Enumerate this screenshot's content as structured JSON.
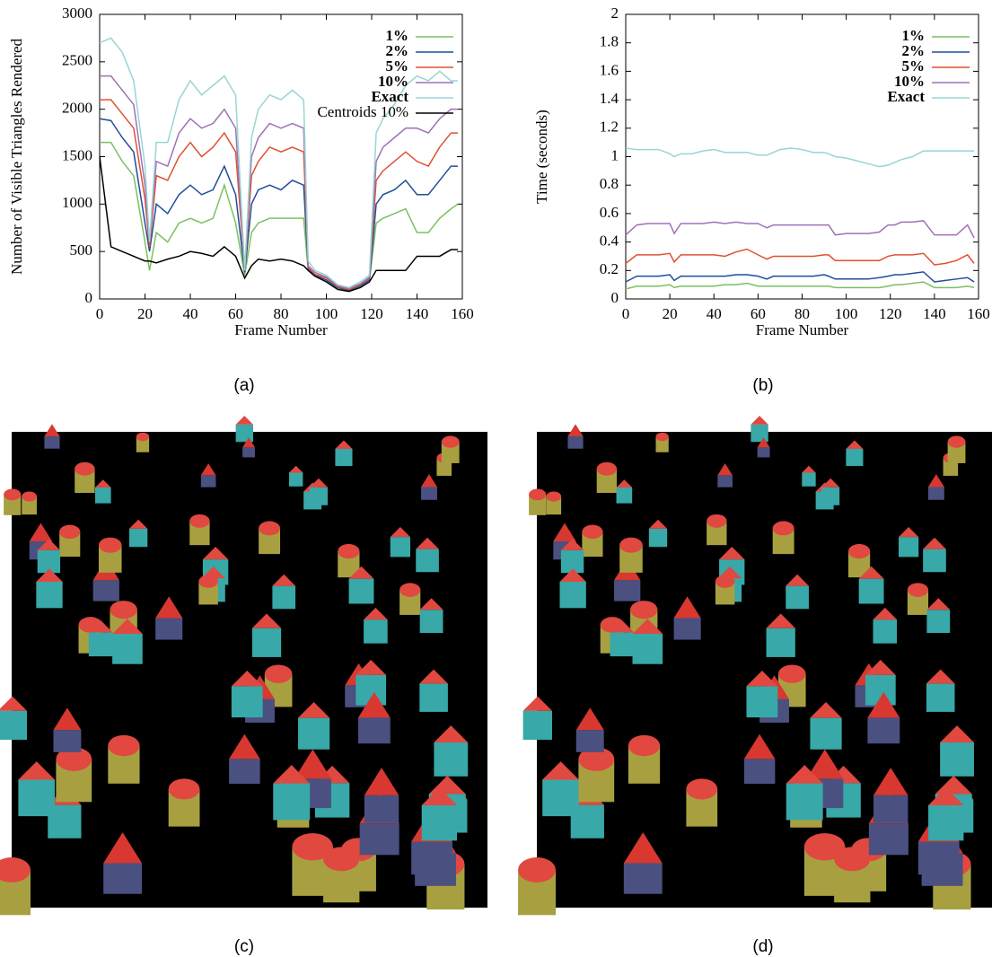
{
  "chart_data": [
    {
      "type": "line",
      "xlabel": "Frame Number",
      "ylabel": "Number of Visible Triangles Rendered",
      "xlim": [
        0,
        160
      ],
      "xticks": [
        0,
        20,
        40,
        60,
        80,
        100,
        120,
        140,
        160
      ],
      "ylim": [
        0,
        3000
      ],
      "yticks": [
        0,
        500,
        1000,
        1500,
        2000,
        2500,
        3000
      ],
      "legend": "top-right",
      "x": [
        0,
        5,
        10,
        15,
        20,
        22,
        25,
        30,
        35,
        40,
        45,
        50,
        55,
        60,
        64,
        67,
        70,
        75,
        80,
        85,
        90,
        92,
        95,
        100,
        105,
        110,
        115,
        119,
        122,
        125,
        130,
        135,
        140,
        145,
        150,
        155,
        158
      ],
      "series": [
        {
          "name": "1%",
          "color": "#7cc060",
          "values": [
            1650,
            1650,
            1450,
            1300,
            600,
            300,
            700,
            600,
            800,
            850,
            800,
            850,
            1200,
            800,
            250,
            700,
            800,
            850,
            850,
            850,
            850,
            300,
            240,
            190,
            110,
            80,
            130,
            190,
            800,
            850,
            900,
            950,
            700,
            700,
            850,
            950,
            1000
          ]
        },
        {
          "name": "2%",
          "color": "#1f4e9a",
          "values": [
            1900,
            1880,
            1700,
            1550,
            800,
            500,
            1000,
            900,
            1100,
            1200,
            1100,
            1150,
            1400,
            1100,
            280,
            1000,
            1150,
            1200,
            1150,
            1250,
            1200,
            320,
            250,
            200,
            120,
            90,
            140,
            200,
            1000,
            1100,
            1150,
            1250,
            1100,
            1100,
            1250,
            1400,
            1400
          ]
        },
        {
          "name": "5%",
          "color": "#e05030",
          "values": [
            2100,
            2100,
            1950,
            1800,
            1050,
            550,
            1300,
            1250,
            1500,
            1650,
            1500,
            1600,
            1750,
            1550,
            300,
            1300,
            1450,
            1600,
            1550,
            1600,
            1550,
            330,
            260,
            220,
            130,
            100,
            150,
            220,
            1250,
            1350,
            1450,
            1550,
            1450,
            1400,
            1600,
            1750,
            1750
          ]
        },
        {
          "name": "10%",
          "color": "#a070b8",
          "values": [
            2350,
            2350,
            2200,
            2050,
            1200,
            600,
            1450,
            1400,
            1750,
            1900,
            1800,
            1850,
            2000,
            1800,
            300,
            1500,
            1700,
            1850,
            1800,
            1850,
            1800,
            350,
            280,
            230,
            140,
            110,
            160,
            230,
            1450,
            1600,
            1700,
            1800,
            1800,
            1750,
            1900,
            2000,
            2000
          ]
        },
        {
          "name": "Exact",
          "color": "#99d5d5",
          "values": [
            2700,
            2750,
            2600,
            2300,
            1400,
            600,
            1650,
            1650,
            2100,
            2300,
            2150,
            2250,
            2350,
            2150,
            300,
            1700,
            2000,
            2150,
            2100,
            2200,
            2100,
            400,
            300,
            250,
            150,
            120,
            180,
            250,
            1750,
            1900,
            2050,
            2250,
            2350,
            2300,
            2400,
            2300,
            2300
          ]
        },
        {
          "name": "Centroids 10%",
          "color": "#000000",
          "values": [
            1500,
            550,
            500,
            450,
            400,
            400,
            380,
            420,
            450,
            500,
            480,
            450,
            550,
            450,
            220,
            350,
            420,
            400,
            420,
            400,
            350,
            300,
            240,
            180,
            100,
            80,
            120,
            180,
            300,
            300,
            300,
            300,
            450,
            450,
            450,
            520,
            520
          ]
        }
      ]
    },
    {
      "type": "line",
      "xlabel": "Frame Number",
      "ylabel": "Time (seconds)",
      "xlim": [
        0,
        160
      ],
      "xticks": [
        0,
        20,
        40,
        60,
        80,
        100,
        120,
        140,
        160
      ],
      "ylim": [
        0,
        2
      ],
      "yticks": [
        0,
        0.2,
        0.4,
        0.6,
        0.8,
        1,
        1.2,
        1.4,
        1.6,
        1.8,
        2
      ],
      "legend": "top-right",
      "x": [
        0,
        5,
        10,
        15,
        20,
        22,
        25,
        30,
        35,
        40,
        45,
        50,
        55,
        60,
        64,
        67,
        70,
        75,
        80,
        85,
        90,
        92,
        95,
        100,
        105,
        110,
        115,
        119,
        122,
        125,
        130,
        135,
        140,
        145,
        150,
        155,
        158
      ],
      "series": [
        {
          "name": "1%",
          "color": "#7cc060",
          "values": [
            0.07,
            0.09,
            0.09,
            0.09,
            0.1,
            0.08,
            0.09,
            0.09,
            0.09,
            0.09,
            0.1,
            0.1,
            0.11,
            0.09,
            0.09,
            0.09,
            0.09,
            0.09,
            0.09,
            0.09,
            0.09,
            0.09,
            0.08,
            0.08,
            0.08,
            0.08,
            0.08,
            0.09,
            0.1,
            0.1,
            0.11,
            0.12,
            0.08,
            0.08,
            0.08,
            0.09,
            0.08
          ]
        },
        {
          "name": "2%",
          "color": "#1f4e9a",
          "values": [
            0.12,
            0.16,
            0.16,
            0.16,
            0.17,
            0.13,
            0.16,
            0.16,
            0.16,
            0.16,
            0.16,
            0.17,
            0.17,
            0.16,
            0.14,
            0.16,
            0.16,
            0.16,
            0.16,
            0.16,
            0.17,
            0.16,
            0.14,
            0.14,
            0.14,
            0.14,
            0.15,
            0.16,
            0.17,
            0.17,
            0.18,
            0.19,
            0.12,
            0.13,
            0.14,
            0.15,
            0.12
          ]
        },
        {
          "name": "5%",
          "color": "#e05030",
          "values": [
            0.25,
            0.31,
            0.31,
            0.31,
            0.32,
            0.26,
            0.31,
            0.31,
            0.31,
            0.31,
            0.3,
            0.33,
            0.35,
            0.31,
            0.28,
            0.3,
            0.3,
            0.3,
            0.3,
            0.3,
            0.31,
            0.31,
            0.27,
            0.27,
            0.27,
            0.27,
            0.27,
            0.3,
            0.31,
            0.31,
            0.31,
            0.32,
            0.24,
            0.25,
            0.27,
            0.31,
            0.25
          ]
        },
        {
          "name": "10%",
          "color": "#a070b8",
          "values": [
            0.45,
            0.52,
            0.53,
            0.53,
            0.53,
            0.46,
            0.53,
            0.53,
            0.53,
            0.54,
            0.53,
            0.54,
            0.53,
            0.53,
            0.5,
            0.52,
            0.52,
            0.52,
            0.52,
            0.52,
            0.52,
            0.52,
            0.45,
            0.46,
            0.46,
            0.46,
            0.47,
            0.52,
            0.52,
            0.54,
            0.54,
            0.55,
            0.45,
            0.45,
            0.45,
            0.52,
            0.43
          ]
        },
        {
          "name": "Exact",
          "color": "#99d5d5",
          "values": [
            1.06,
            1.05,
            1.05,
            1.05,
            1.02,
            1.0,
            1.02,
            1.02,
            1.04,
            1.05,
            1.03,
            1.03,
            1.03,
            1.01,
            1.01,
            1.03,
            1.05,
            1.06,
            1.05,
            1.03,
            1.03,
            1.02,
            1.0,
            0.99,
            0.97,
            0.95,
            0.93,
            0.94,
            0.96,
            0.98,
            1.0,
            1.04,
            1.04,
            1.04,
            1.04,
            1.04,
            1.04
          ]
        }
      ]
    }
  ],
  "captions": [
    "(a)",
    "(b)",
    "(c)",
    "(d)"
  ]
}
